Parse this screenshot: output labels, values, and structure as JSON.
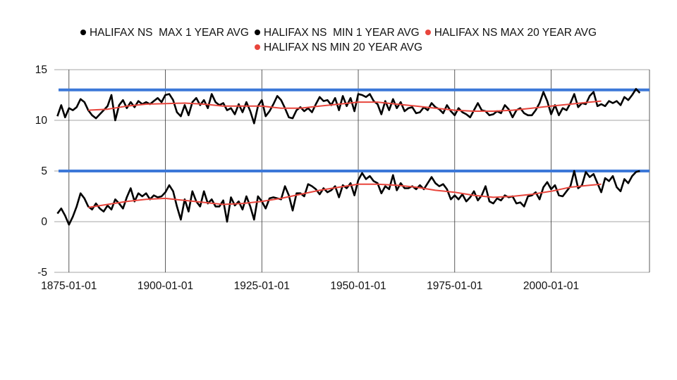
{
  "chart_data": {
    "type": "line",
    "title": "",
    "xlabel": "",
    "ylabel": "",
    "ylim": [
      -5,
      15
    ],
    "xlim": [
      1871.2,
      2025.5
    ],
    "yticks": [
      "15",
      "10",
      "5",
      "0",
      "-5"
    ],
    "ytick_values": [
      15,
      10,
      5,
      0,
      -5
    ],
    "xticks": [
      "1875-01-01",
      "1900-01-01",
      "1925-01-01",
      "1950-01-01",
      "1975-01-01",
      "2000-01-01"
    ],
    "xtick_values": [
      1875,
      1900,
      1925,
      1950,
      1975,
      2000
    ],
    "grid": true,
    "legend_position": "top",
    "colors": {
      "black": "#000000",
      "red": "#e8453c",
      "blue": "#3c78d8",
      "grid": "#b7b7b7"
    },
    "series": [
      {
        "name": "HALIFAX NS  MAX 1 YEAR AVG",
        "color": "#000000",
        "x_start": 1872,
        "x_step": 1,
        "values": [
          10.4,
          11.5,
          10.3,
          11.2,
          11.0,
          11.3,
          12.1,
          11.8,
          11.0,
          10.5,
          10.2,
          10.6,
          11.0,
          11.4,
          12.5,
          10.0,
          11.5,
          12.0,
          11.2,
          11.8,
          11.3,
          11.9,
          11.6,
          11.8,
          11.6,
          11.9,
          12.2,
          11.8,
          12.5,
          12.6,
          12.0,
          10.8,
          10.4,
          11.5,
          10.5,
          11.8,
          12.2,
          11.5,
          12.0,
          11.2,
          12.6,
          11.8,
          11.5,
          11.7,
          11.0,
          11.2,
          10.6,
          11.6,
          10.8,
          11.8,
          10.9,
          9.7,
          11.4,
          12.0,
          10.4,
          10.9,
          11.6,
          12.4,
          12.0,
          11.2,
          10.3,
          10.2,
          11.0,
          11.3,
          10.9,
          11.2,
          10.8,
          11.6,
          12.3,
          11.9,
          12.0,
          11.5,
          12.2,
          11.0,
          12.4,
          11.4,
          12.2,
          10.9,
          12.6,
          12.5,
          12.3,
          12.6,
          11.9,
          11.6,
          10.6,
          11.9,
          11.0,
          12.1,
          11.2,
          11.8,
          10.9,
          11.2,
          11.3,
          10.7,
          10.8,
          11.3,
          11.0,
          11.7,
          11.3,
          11.1,
          10.7,
          11.5,
          10.9,
          10.5,
          11.2,
          10.8,
          10.6,
          10.3,
          11.0,
          11.7,
          11.0,
          10.9,
          10.5,
          10.6,
          10.9,
          10.7,
          11.5,
          11.1,
          10.3,
          11.0,
          11.2,
          10.7,
          10.5,
          10.5,
          11.0,
          11.7,
          12.8,
          11.9,
          10.6,
          11.5,
          10.5,
          11.2,
          11.0,
          11.7,
          12.6,
          11.3,
          11.7,
          11.6,
          12.4,
          12.8,
          11.4,
          11.6,
          11.4,
          11.9,
          11.7,
          11.9,
          11.5,
          12.3,
          12.0,
          12.5,
          13.1,
          12.7
        ]
      },
      {
        "name": "HALIFAX NS  MIN 1 YEAR AVG",
        "color": "#000000",
        "x_start": 1872,
        "x_step": 1,
        "values": [
          0.8,
          1.3,
          0.6,
          -0.3,
          0.5,
          1.5,
          2.8,
          2.3,
          1.5,
          1.2,
          1.8,
          1.3,
          1.0,
          1.6,
          1.2,
          2.2,
          1.8,
          1.3,
          2.4,
          3.3,
          2.0,
          2.8,
          2.5,
          2.8,
          2.2,
          2.6,
          2.4,
          2.5,
          2.9,
          3.6,
          3.0,
          1.5,
          0.2,
          2.2,
          1.0,
          3.0,
          2.0,
          1.5,
          3.0,
          1.8,
          2.2,
          1.5,
          1.5,
          2.1,
          0.0,
          2.4,
          1.6,
          2.0,
          1.2,
          2.5,
          1.5,
          0.2,
          2.5,
          2.0,
          1.3,
          2.3,
          2.4,
          2.3,
          2.2,
          3.5,
          2.6,
          1.1,
          2.8,
          2.8,
          2.5,
          3.7,
          3.5,
          3.2,
          2.7,
          3.3,
          2.9,
          3.1,
          3.5,
          2.4,
          3.6,
          3.3,
          3.8,
          2.6,
          4.1,
          4.8,
          4.2,
          4.5,
          4.0,
          3.8,
          2.8,
          3.5,
          3.2,
          4.6,
          3.1,
          3.8,
          3.3,
          3.3,
          3.5,
          3.2,
          3.6,
          3.2,
          3.8,
          4.4,
          3.8,
          3.5,
          3.7,
          3.2,
          2.2,
          2.6,
          2.2,
          2.7,
          2.0,
          2.4,
          3.0,
          2.1,
          2.6,
          3.5,
          2.0,
          1.8,
          2.3,
          2.1,
          2.6,
          2.4,
          2.5,
          1.8,
          1.9,
          1.5,
          2.5,
          2.6,
          2.9,
          2.2,
          3.4,
          3.9,
          3.2,
          3.6,
          2.6,
          2.5,
          3.0,
          3.5,
          5.0,
          3.3,
          3.6,
          4.9,
          4.4,
          4.7,
          3.8,
          2.9,
          4.3,
          4.0,
          4.5,
          3.4,
          3.0,
          4.2,
          3.8,
          4.5,
          4.9,
          5.0
        ]
      },
      {
        "name": "HALIFAX NS MAX 20 YEAR AVG",
        "color": "#e8453c",
        "x": [
          1880,
          1885,
          1890,
          1895,
          1900,
          1905,
          1910,
          1915,
          1920,
          1925,
          1930,
          1935,
          1940,
          1945,
          1950,
          1955,
          1960,
          1965,
          1970,
          1975,
          1980,
          1985,
          1990,
          1995,
          2000,
          2005,
          2010,
          2013
        ],
        "values": [
          11.0,
          11.1,
          11.4,
          11.6,
          11.65,
          11.7,
          11.6,
          11.4,
          11.4,
          11.4,
          11.2,
          11.2,
          11.4,
          11.6,
          11.8,
          11.8,
          11.6,
          11.4,
          11.2,
          11.0,
          10.9,
          10.9,
          11.0,
          11.2,
          11.4,
          11.6,
          11.8,
          11.9
        ]
      },
      {
        "name": "HALIFAX NS MIN 20 YEAR AVG",
        "color": "#e8453c",
        "x": [
          1880,
          1885,
          1890,
          1895,
          1900,
          1905,
          1910,
          1915,
          1920,
          1925,
          1930,
          1935,
          1940,
          1945,
          1950,
          1955,
          1960,
          1965,
          1970,
          1975,
          1980,
          1985,
          1990,
          1995,
          2000,
          2005,
          2010,
          2013
        ],
        "values": [
          1.4,
          1.7,
          2.0,
          2.2,
          2.3,
          2.1,
          1.9,
          1.7,
          1.8,
          2.0,
          2.3,
          2.7,
          3.1,
          3.4,
          3.7,
          3.7,
          3.6,
          3.4,
          3.1,
          2.9,
          2.6,
          2.4,
          2.5,
          2.7,
          3.0,
          3.4,
          3.6,
          3.7
        ]
      }
    ],
    "reference_lines": [
      {
        "value": 13,
        "color": "#3c78d8",
        "x_range": [
          1872.3,
          2025.5
        ]
      },
      {
        "value": 5,
        "color": "#3c78d8",
        "x_range": [
          1872.3,
          2025.5
        ]
      }
    ]
  }
}
